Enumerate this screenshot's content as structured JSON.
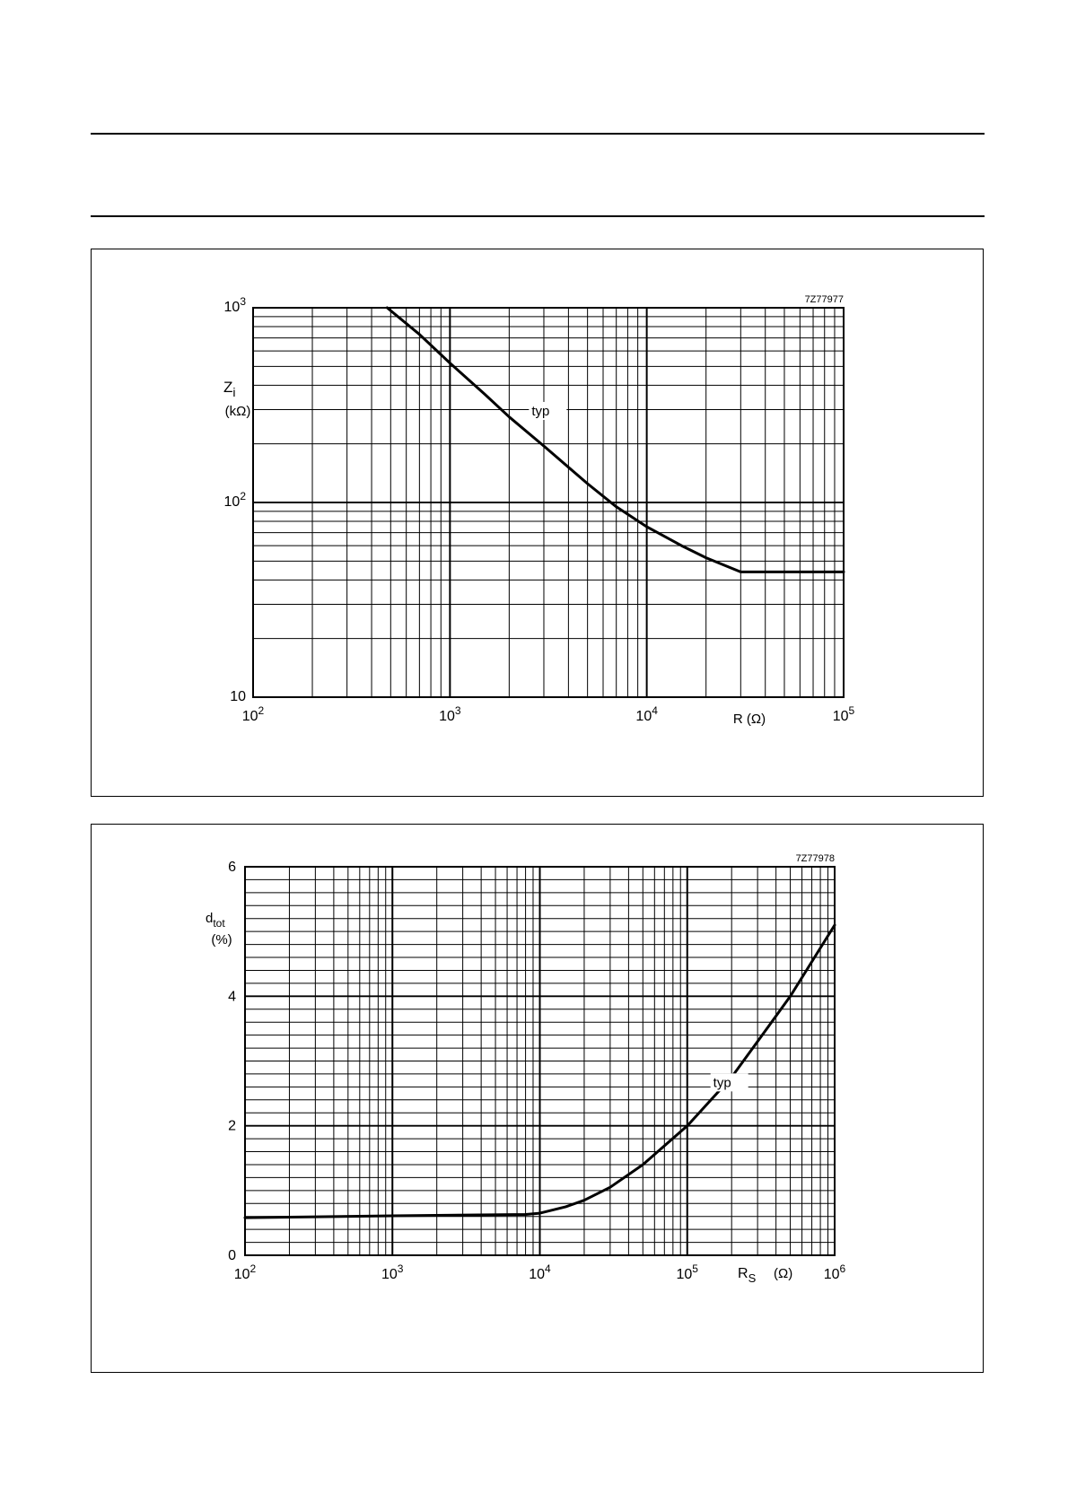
{
  "page": {
    "rules": 2
  },
  "chart_data": [
    {
      "type": "line",
      "code": "7Z77977",
      "x_scale": "log",
      "y_scale": "log",
      "xlim": [
        100,
        100000
      ],
      "ylim": [
        10,
        1000
      ],
      "xlabel": "R (Ω)",
      "ylabel": {
        "symbol": "Z",
        "subscript": "i",
        "unit": "(kΩ)"
      },
      "x_ticks": [
        {
          "value": 100,
          "base": "10",
          "exp": "2"
        },
        {
          "value": 1000,
          "base": "10",
          "exp": "3"
        },
        {
          "value": 10000,
          "base": "10",
          "exp": "4"
        },
        {
          "value": 100000,
          "base": "10",
          "exp": "5"
        }
      ],
      "y_ticks": [
        {
          "value": 10,
          "base": "10",
          "exp": ""
        },
        {
          "value": 100,
          "base": "10",
          "exp": "2"
        },
        {
          "value": 1000,
          "base": "10",
          "exp": "3"
        }
      ],
      "grid": true,
      "series": [
        {
          "name": "typ",
          "x": [
            480,
            700,
            1000,
            1500,
            2000,
            3000,
            5000,
            7000,
            10000,
            15000,
            20000,
            30000,
            50000,
            100000
          ],
          "y": [
            1000,
            730,
            520,
            360,
            275,
            195,
            125,
            95,
            75,
            60,
            52,
            44,
            44,
            44
          ]
        }
      ],
      "annotations": [
        {
          "text": "typ",
          "x": 2600,
          "y": 280
        }
      ]
    },
    {
      "type": "line",
      "code": "7Z77978",
      "x_scale": "log",
      "y_scale": "linear",
      "xlim": [
        100,
        1000000
      ],
      "ylim": [
        0,
        6
      ],
      "xlabel": {
        "symbol": "R",
        "subscript": "S",
        "unit": "(Ω)"
      },
      "ylabel": {
        "symbol": "d",
        "subscript": "tot",
        "unit": "(%)"
      },
      "x_ticks": [
        {
          "value": 100,
          "base": "10",
          "exp": "2"
        },
        {
          "value": 1000,
          "base": "10",
          "exp": "3"
        },
        {
          "value": 10000,
          "base": "10",
          "exp": "4"
        },
        {
          "value": 100000,
          "base": "10",
          "exp": "5"
        },
        {
          "value": 1000000,
          "base": "10",
          "exp": "6"
        }
      ],
      "y_ticks": [
        {
          "value": 0,
          "label": "0"
        },
        {
          "value": 2,
          "label": "2"
        },
        {
          "value": 4,
          "label": "4"
        },
        {
          "value": 6,
          "label": "6"
        }
      ],
      "grid": true,
      "series": [
        {
          "name": "typ",
          "x": [
            100,
            1000,
            8000,
            10000,
            15000,
            20000,
            30000,
            50000,
            100000,
            200000,
            300000,
            500000,
            1000000
          ],
          "y": [
            0.58,
            0.61,
            0.63,
            0.65,
            0.75,
            0.85,
            1.05,
            1.4,
            2.0,
            2.75,
            3.3,
            4.0,
            5.1
          ]
        }
      ],
      "annotations": [
        {
          "text": "typ",
          "x": 150000,
          "y": 2.6
        }
      ]
    }
  ]
}
